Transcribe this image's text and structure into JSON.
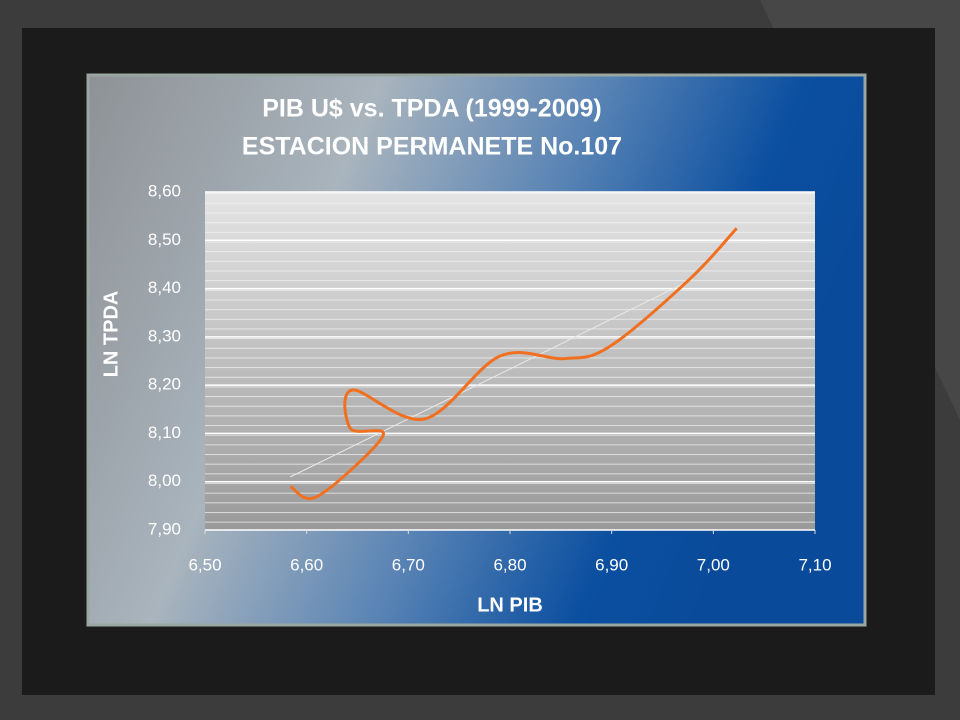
{
  "chart_data": {
    "type": "scatter",
    "title": [
      "PIB U$  vs. TPDA (1999-2009)",
      "ESTACION PERMANETE No.107"
    ],
    "x_label": "LN  PIB",
    "y_label": "LN  TPDA",
    "series": [
      {
        "color": "#f07020",
        "x": [
          6.584,
          6.611,
          6.675,
          6.643,
          6.645,
          6.716,
          6.79,
          6.854,
          6.898,
          6.977,
          7.023
        ],
        "values": [
          7.99,
          7.97,
          8.095,
          8.11,
          8.19,
          8.13,
          8.26,
          8.255,
          8.28,
          8.42,
          8.525
        ]
      }
    ],
    "trendline": {
      "color": "#e8e8e8",
      "x": [
        6.584,
        6.98
      ],
      "values": [
        8.01,
        8.42
      ]
    },
    "xlim": [
      6.5,
      7.1
    ],
    "xticks": [
      {
        "value": 6.5,
        "label": "6,50"
      },
      {
        "value": 6.6,
        "label": "6,60"
      },
      {
        "value": 6.7,
        "label": "6,70"
      },
      {
        "value": 6.8,
        "label": "6,80"
      },
      {
        "value": 6.9,
        "label": "6,90"
      },
      {
        "value": 7.0,
        "label": "7,00"
      },
      {
        "value": 7.1,
        "label": "7,10"
      }
    ],
    "ylim": [
      7.9,
      8.6
    ],
    "yticks": [
      {
        "value": 7.9,
        "label": "7,90"
      },
      {
        "value": 8.0,
        "label": "8,00"
      },
      {
        "value": 8.1,
        "label": "8,10"
      },
      {
        "value": 8.2,
        "label": "8,20"
      },
      {
        "value": 8.3,
        "label": "8,30"
      },
      {
        "value": 8.4,
        "label": "8,40"
      },
      {
        "value": 8.5,
        "label": "8,50"
      },
      {
        "value": 8.6,
        "label": "8,60"
      }
    ],
    "grid": true
  }
}
